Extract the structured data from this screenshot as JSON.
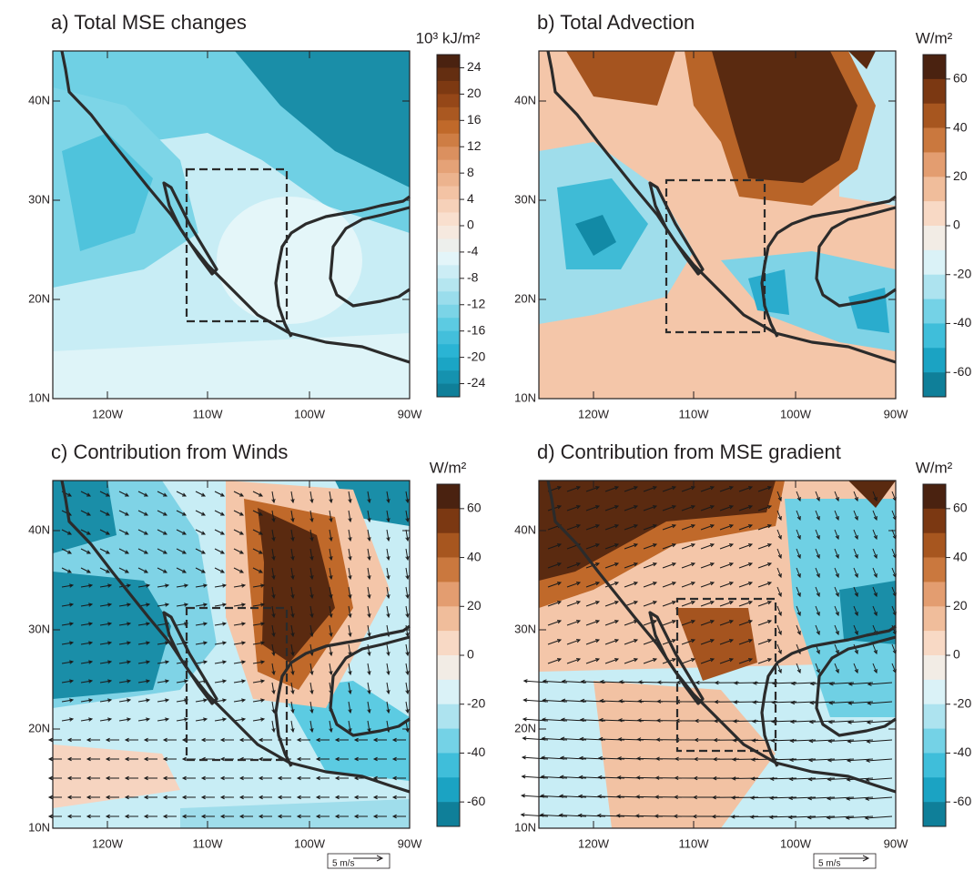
{
  "panels": [
    {
      "title": "a) Total MSE changes",
      "unit": "10³ kJ/m²",
      "colorbar_labels": [
        "24",
        "20",
        "16",
        "12",
        "8",
        "4",
        "0",
        "-4",
        "-8",
        "-12",
        "-16",
        "-20",
        "-24"
      ],
      "x_tick_labels": [
        "120W",
        "110W",
        "100W",
        "90W"
      ],
      "y_tick_labels": [
        "10N",
        "20N",
        "30N",
        "40N"
      ]
    },
    {
      "title": "b) Total Advection",
      "unit": "W/m²",
      "colorbar_labels": [
        "60",
        "40",
        "20",
        "0",
        "-20",
        "-40",
        "-60"
      ],
      "x_tick_labels": [
        "120W",
        "110W",
        "100W",
        "90W"
      ],
      "y_tick_labels": [
        "10N",
        "20N",
        "30N",
        "40N"
      ]
    },
    {
      "title": "c) Contribution from Winds",
      "unit": "W/m²",
      "colorbar_labels": [
        "60",
        "40",
        "20",
        "0",
        "-20",
        "-40",
        "-60"
      ],
      "x_tick_labels": [
        "120W",
        "110W",
        "100W",
        "90W"
      ],
      "y_tick_labels": [
        "10N",
        "20N",
        "30N",
        "40N"
      ],
      "vector_scale": "5 m/s"
    },
    {
      "title": "d) Contribution from MSE gradient",
      "unit": "W/m²",
      "colorbar_labels": [
        "60",
        "40",
        "20",
        "0",
        "-20",
        "-40",
        "-60"
      ],
      "x_tick_labels": [
        "120W",
        "110W",
        "100W",
        "90W"
      ],
      "y_tick_labels": [
        "10N",
        "20N",
        "30N",
        "40N"
      ],
      "vector_scale": "5 m/s"
    }
  ],
  "colormap": [
    "#4a2210",
    "#8a3f13",
    "#c0692a",
    "#e29a6c",
    "#f3c3a4",
    "#fbe6d9",
    "#e3f5f9",
    "#a9e2ee",
    "#5ccbe2",
    "#1eaed0",
    "#0f7f99"
  ]
}
